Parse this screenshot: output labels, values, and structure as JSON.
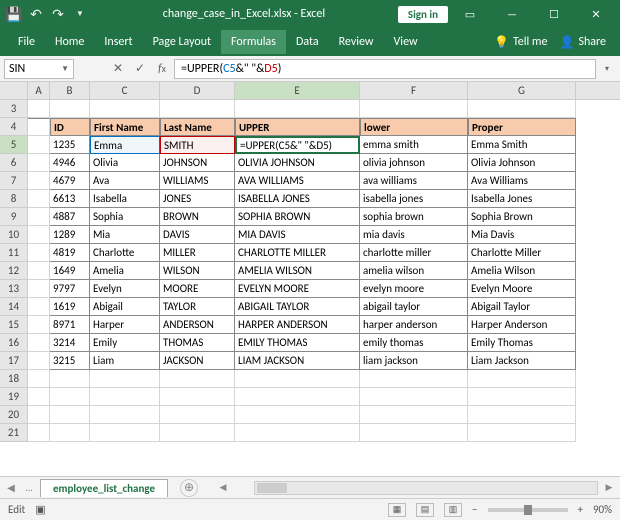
{
  "title": "change_case_in_Excel.xlsx - Excel",
  "signin": "Sign in",
  "ribbon": {
    "tabs": [
      "File",
      "Home",
      "Insert",
      "Page Layout",
      "Formulas",
      "Data",
      "Review",
      "View"
    ],
    "active": "Formulas",
    "tellme": "Tell me",
    "share": "Share"
  },
  "namebox": "SIN",
  "formula_prefix": "=UPPER(",
  "formula_ref1": "C5",
  "formula_amp": "&\" \"&",
  "formula_ref2": "D5",
  "formula_suffix": ")",
  "columns": [
    "A",
    "B",
    "C",
    "D",
    "E",
    "F",
    "G"
  ],
  "header_row": 4,
  "headers": {
    "b": "ID",
    "c": "First Name",
    "d": "Last Name",
    "e": "UPPER",
    "f": "lower",
    "g": "Proper"
  },
  "rows": [
    {
      "n": 5,
      "b": "1235",
      "c": "Emma",
      "d": "SMITH",
      "e": "=UPPER(C5&\" \"&D5)",
      "f": "emma smith",
      "g": "Emma Smith"
    },
    {
      "n": 6,
      "b": "4946",
      "c": "Olivia",
      "d": "JOHNSON",
      "e": "OLIVIA JOHNSON",
      "f": "olivia johnson",
      "g": "Olivia Johnson"
    },
    {
      "n": 7,
      "b": "4679",
      "c": "Ava",
      "d": "WILLIAMS",
      "e": "AVA WILLIAMS",
      "f": "ava williams",
      "g": "Ava Williams"
    },
    {
      "n": 8,
      "b": "6613",
      "c": "Isabella",
      "d": "JONES",
      "e": "ISABELLA JONES",
      "f": "isabella jones",
      "g": "Isabella Jones"
    },
    {
      "n": 9,
      "b": "4887",
      "c": "Sophia",
      "d": "BROWN",
      "e": "SOPHIA BROWN",
      "f": "sophia brown",
      "g": "Sophia Brown"
    },
    {
      "n": 10,
      "b": "1289",
      "c": "Mia",
      "d": "DAVIS",
      "e": "MIA DAVIS",
      "f": "mia davis",
      "g": "Mia Davis"
    },
    {
      "n": 11,
      "b": "4819",
      "c": "Charlotte",
      "d": "MILLER",
      "e": "CHARLOTTE MILLER",
      "f": "charlotte miller",
      "g": "Charlotte Miller"
    },
    {
      "n": 12,
      "b": "1649",
      "c": "Amelia",
      "d": "WILSON",
      "e": "AMELIA WILSON",
      "f": "amelia wilson",
      "g": "Amelia Wilson"
    },
    {
      "n": 13,
      "b": "9797",
      "c": "Evelyn",
      "d": "MOORE",
      "e": "EVELYN MOORE",
      "f": "evelyn moore",
      "g": "Evelyn Moore"
    },
    {
      "n": 14,
      "b": "1619",
      "c": "Abigail",
      "d": "TAYLOR",
      "e": "ABIGAIL TAYLOR",
      "f": "abigail taylor",
      "g": "Abigail Taylor"
    },
    {
      "n": 15,
      "b": "8971",
      "c": "Harper",
      "d": "ANDERSON",
      "e": "HARPER ANDERSON",
      "f": "harper anderson",
      "g": "Harper Anderson"
    },
    {
      "n": 16,
      "b": "3214",
      "c": "Emily",
      "d": "THOMAS",
      "e": "EMILY THOMAS",
      "f": "emily thomas",
      "g": "Emily Thomas"
    },
    {
      "n": 17,
      "b": "3215",
      "c": "Liam",
      "d": "JACKSON",
      "e": "LIAM JACKSON",
      "f": "liam jackson",
      "g": "Liam Jackson"
    }
  ],
  "empty_rows": [
    3,
    18,
    19,
    20,
    21
  ],
  "sheet": "employee_list_change",
  "status": "Edit",
  "zoom": "90%",
  "colors": {
    "excel_green": "#217346",
    "header_fill": "#f8cbad",
    "ref_blue": "#0070c0",
    "ref_red": "#c00000"
  }
}
